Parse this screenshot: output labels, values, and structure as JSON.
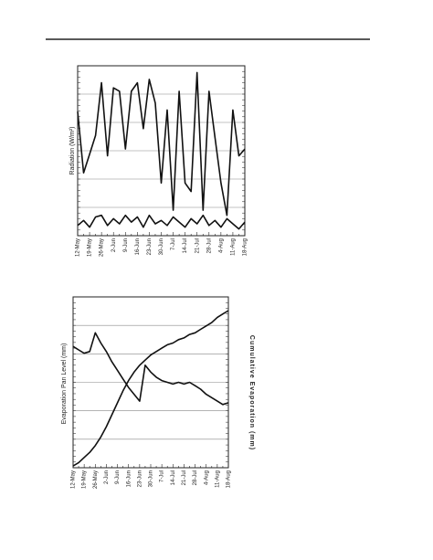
{
  "chart_data": [
    {
      "type": "line",
      "y_label": "Radiation (W/m²)",
      "categories": [
        "12-May",
        null,
        "19-May",
        null,
        "26-May",
        null,
        "2-Jun",
        null,
        "9-Jun",
        null,
        "16-Jun",
        null,
        "23-Jun",
        null,
        "30-Jun",
        null,
        "7-Jul",
        null,
        "14-Jul",
        null,
        "21-Jul",
        null,
        "28-Jul",
        null,
        "4-Aug",
        null,
        "11-Aug",
        null,
        "18-Aug"
      ],
      "ylim": [
        0,
        100
      ],
      "grid": true,
      "series": [
        {
          "color": "#111111",
          "values": [
            73,
            37,
            48,
            59,
            90,
            47,
            87,
            85,
            51,
            85,
            90,
            63,
            92,
            78,
            31,
            74,
            15,
            85,
            31,
            26,
            96,
            15,
            85,
            58,
            31,
            12,
            74,
            47,
            51
          ]
        },
        {
          "color": "#111111",
          "values": [
            6,
            9,
            5,
            11,
            12,
            6,
            10,
            7,
            12,
            8,
            11,
            5,
            12,
            7,
            9,
            6,
            11,
            8,
            5,
            10,
            7,
            12,
            6,
            9,
            5,
            10,
            7,
            4,
            8
          ]
        }
      ]
    },
    {
      "type": "line",
      "y_label": "Evaporation Pan Level (mm)",
      "y2_label": "Cumulative Evaporation (mm)",
      "categories": [
        "12-May",
        null,
        "19-May",
        null,
        "26-May",
        null,
        "2-Jun",
        null,
        "9-Jun",
        null,
        "16-Jun",
        null,
        "23-Jun",
        null,
        "30-Jun",
        null,
        "7-Jul",
        null,
        "14-Jul",
        null,
        "21-Jul",
        null,
        "28-Jul",
        null,
        "4-Aug",
        null,
        "11-Aug",
        null,
        "18-Aug"
      ],
      "ylim": [
        0,
        100
      ],
      "y2lim": [
        0,
        100
      ],
      "grid": true,
      "series": [
        {
          "color": "#111111",
          "values": [
            71,
            69,
            67,
            68,
            79,
            73,
            68,
            62,
            57,
            52,
            47,
            43,
            39,
            60,
            56,
            53,
            51,
            50,
            49,
            50,
            49,
            50,
            48,
            46,
            43,
            41,
            39,
            37,
            38
          ]
        },
        {
          "color": "#111111",
          "axis": "y2",
          "values": [
            1,
            3,
            6,
            9,
            13,
            18,
            24,
            31,
            38,
            45,
            51,
            56,
            60,
            63,
            66,
            68,
            70,
            72,
            73,
            75,
            76,
            78,
            79,
            81,
            83,
            85,
            88,
            90,
            92
          ]
        }
      ]
    }
  ]
}
